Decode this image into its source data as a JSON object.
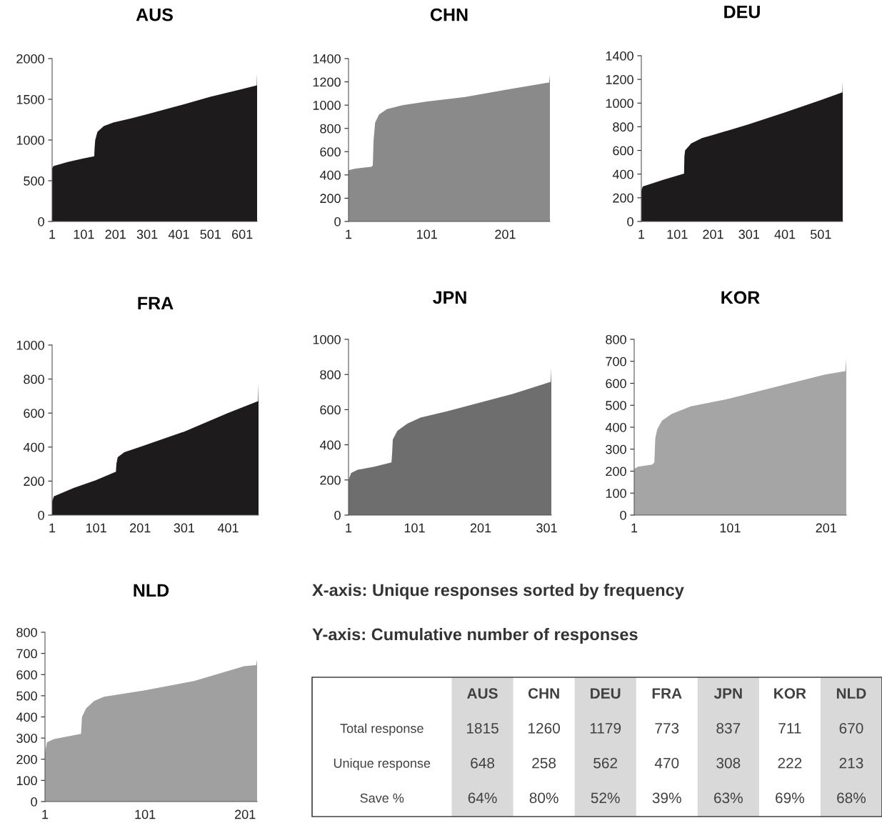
{
  "chart_data": [
    {
      "type": "area",
      "title": "AUS",
      "x": [
        1,
        5,
        50,
        100,
        134,
        135,
        137,
        144,
        164,
        194,
        250,
        300,
        400,
        500,
        600,
        647,
        648
      ],
      "values": [
        650,
        680,
        730,
        775,
        800,
        900,
        1000,
        1100,
        1170,
        1215,
        1265,
        1315,
        1420,
        1530,
        1625,
        1670,
        1815
      ],
      "color": "#1e1b1c",
      "xlim": [
        1,
        648
      ],
      "xticks": [
        1,
        101,
        201,
        301,
        401,
        501,
        601
      ],
      "ylim": [
        0,
        2000
      ],
      "yticks": [
        0,
        500,
        1000,
        1500,
        2000
      ],
      "grid": false,
      "legend": false
    },
    {
      "type": "area",
      "title": "CHN",
      "x": [
        1,
        10,
        30,
        32,
        33,
        35,
        40,
        50,
        70,
        100,
        150,
        200,
        257,
        258
      ],
      "values": [
        440,
        455,
        470,
        480,
        700,
        850,
        920,
        965,
        1000,
        1030,
        1070,
        1130,
        1195,
        1260
      ],
      "color": "#8a8a8a",
      "xlim": [
        1,
        258
      ],
      "xticks": [
        1,
        101,
        201
      ],
      "ylim": [
        0,
        1400
      ],
      "yticks": [
        0,
        200,
        400,
        600,
        800,
        1000,
        1200,
        1400
      ],
      "grid": false,
      "legend": false
    },
    {
      "type": "area",
      "title": "DEU",
      "x": [
        1,
        5,
        60,
        120,
        121,
        123,
        140,
        170,
        200,
        300,
        400,
        500,
        561,
        562
      ],
      "values": [
        260,
        295,
        350,
        405,
        550,
        600,
        660,
        705,
        730,
        820,
        920,
        1025,
        1090,
        1179
      ],
      "color": "#1e1b1c",
      "xlim": [
        1,
        562
      ],
      "xticks": [
        1,
        101,
        201,
        301,
        401,
        501
      ],
      "ylim": [
        0,
        1400
      ],
      "yticks": [
        0,
        200,
        400,
        600,
        800,
        1000,
        1200,
        1400
      ],
      "grid": false,
      "legend": false
    },
    {
      "type": "area",
      "title": "FRA",
      "x": [
        1,
        5,
        50,
        100,
        146,
        147,
        150,
        165,
        200,
        300,
        400,
        469,
        470
      ],
      "values": [
        80,
        110,
        160,
        205,
        255,
        300,
        340,
        370,
        400,
        490,
        600,
        670,
        773
      ],
      "color": "#1e1b1c",
      "xlim": [
        1,
        470
      ],
      "xticks": [
        1,
        101,
        201,
        301,
        401
      ],
      "ylim": [
        0,
        1000
      ],
      "yticks": [
        0,
        200,
        400,
        600,
        800,
        1000
      ],
      "grid": false,
      "legend": false
    },
    {
      "type": "area",
      "title": "JPN",
      "x": [
        1,
        5,
        15,
        40,
        66,
        67,
        68,
        75,
        90,
        110,
        150,
        200,
        250,
        300,
        307,
        308
      ],
      "values": [
        200,
        240,
        258,
        275,
        300,
        350,
        430,
        480,
        520,
        555,
        590,
        640,
        690,
        750,
        758,
        837
      ],
      "color": "#6e6e6e",
      "xlim": [
        1,
        308
      ],
      "xticks": [
        1,
        101,
        201,
        301
      ],
      "ylim": [
        0,
        1000
      ],
      "yticks": [
        0,
        200,
        400,
        600,
        800,
        1000
      ],
      "grid": false,
      "legend": false
    },
    {
      "type": "area",
      "title": "KOR",
      "x": [
        1,
        5,
        20,
        22,
        23,
        25,
        30,
        40,
        60,
        100,
        150,
        200,
        221,
        222
      ],
      "values": [
        210,
        220,
        230,
        240,
        350,
        390,
        430,
        460,
        495,
        530,
        585,
        640,
        655,
        711
      ],
      "color": "#a5a5a5",
      "xlim": [
        1,
        222
      ],
      "xticks": [
        1,
        101,
        201
      ],
      "ylim": [
        0,
        800
      ],
      "yticks": [
        0,
        100,
        200,
        300,
        400,
        500,
        600,
        700,
        800
      ],
      "grid": false,
      "legend": false
    },
    {
      "type": "area",
      "title": "NLD",
      "x": [
        1,
        3,
        10,
        37,
        38,
        42,
        50,
        60,
        100,
        150,
        200,
        212,
        213
      ],
      "values": [
        230,
        280,
        295,
        320,
        400,
        440,
        475,
        495,
        525,
        570,
        640,
        645,
        670
      ],
      "color": "#a0a0a0",
      "xlim": [
        1,
        213
      ],
      "xticks": [
        1,
        101,
        201
      ],
      "ylim": [
        0,
        800
      ],
      "yticks": [
        0,
        100,
        200,
        300,
        400,
        500,
        600,
        700,
        800
      ],
      "grid": false,
      "legend": false
    },
    {
      "type": "other",
      "annotations": [
        "X-axis: Unique responses sorted by frequency",
        "Y-axis: Cumulative number of responses"
      ],
      "categories": [
        "AUS",
        "CHN",
        "DEU",
        "FRA",
        "JPN",
        "KOR",
        "NLD"
      ],
      "y_categories": [
        "Total response",
        "Unique response",
        "Save %"
      ],
      "cell_labels": [
        [
          "1815",
          "1260",
          "1179",
          "773",
          "837",
          "711",
          "670"
        ],
        [
          "648",
          "258",
          "562",
          "470",
          "308",
          "222",
          "213"
        ],
        [
          "64%",
          "80%",
          "52%",
          "39%",
          "63%",
          "69%",
          "68%"
        ]
      ]
    }
  ]
}
